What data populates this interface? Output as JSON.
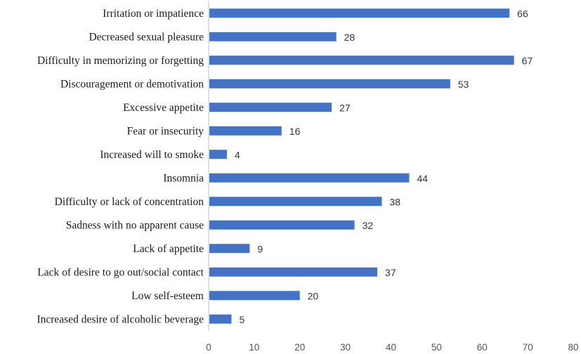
{
  "chart_data": {
    "type": "bar",
    "orientation": "horizontal",
    "title": "",
    "xlabel": "",
    "ylabel": "",
    "categories": [
      "Irritation or impatience",
      "Decreased sexual pleasure",
      "Difficulty in memorizing or forgetting",
      "Discouragement or demotivation",
      "Excessive appetite",
      "Fear or insecurity",
      "Increased will to smoke",
      "Insomnia",
      "Difficulty or lack of concentration",
      "Sadness with no apparent cause",
      "Lack of appetite",
      "Lack of desire to go out/social contact",
      "Low self-esteem",
      "Increased desire of alcoholic beverage"
    ],
    "values": [
      66,
      28,
      67,
      53,
      27,
      16,
      4,
      44,
      38,
      32,
      9,
      37,
      20,
      5
    ],
    "xlim": [
      0,
      80
    ],
    "xticks": [
      "0",
      "10",
      "20",
      "30",
      "40",
      "50",
      "60",
      "70",
      "80"
    ],
    "bar_color": "#4472C4",
    "grid": false,
    "legend": "none",
    "data_labels": true
  }
}
